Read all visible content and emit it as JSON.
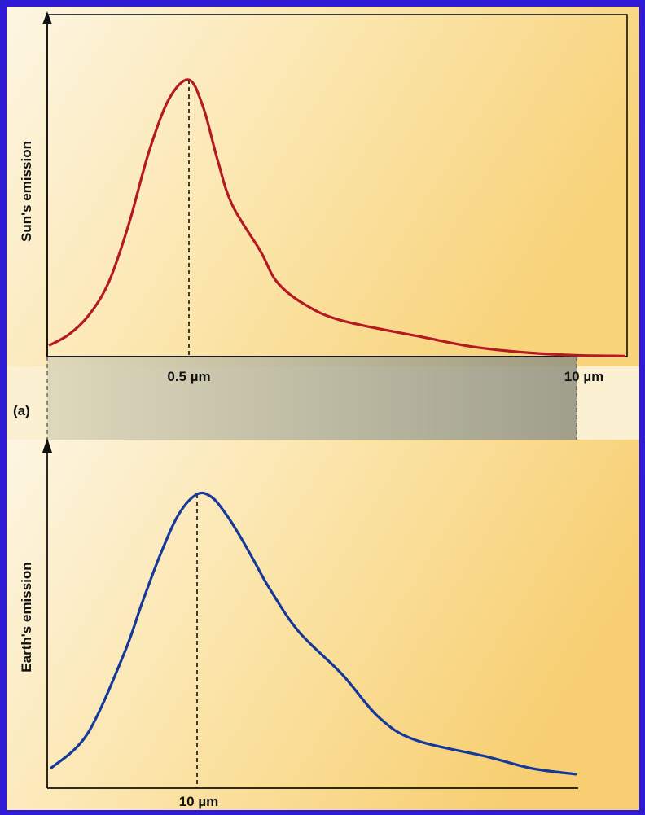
{
  "colors": {
    "page_background": "#2f1ad6",
    "panel_paper_light": "#fbf3de",
    "panel_paper_warm": "#f9d98a",
    "sun_curve": "#b41a22",
    "earth_curve": "#15399a",
    "connector_band": "#9c9c86"
  },
  "panel_label": "(a)",
  "chart_data": [
    {
      "type": "line",
      "title": "",
      "ylabel": "Sun's emission",
      "xlabel": "",
      "tick_labels": [
        "0.5 µm",
        "10 µm"
      ],
      "x_scale": "wavelength (µm), nonlinear axis",
      "peak_label": "0.5 µm",
      "grid": false,
      "legend": "none",
      "series": [
        {
          "x": [
            0.15,
            0.2,
            0.25,
            0.3,
            0.35,
            0.4,
            0.45,
            0.5,
            0.6,
            0.7,
            0.8,
            1.0,
            1.3,
            1.8,
            2.5,
            4,
            6,
            8,
            10,
            11
          ],
          "y": [
            0.04,
            0.08,
            0.15,
            0.27,
            0.48,
            0.74,
            0.93,
            1.0,
            0.9,
            0.71,
            0.55,
            0.38,
            0.27,
            0.19,
            0.13,
            0.07,
            0.035,
            0.015,
            0.005,
            0.002
          ]
        }
      ]
    },
    {
      "type": "line",
      "title": "",
      "ylabel": "Earth's emission",
      "xlabel": "",
      "tick_labels": [
        "10 µm"
      ],
      "x_scale": "wavelength (µm), nonlinear axis",
      "peak_label": "10 µm",
      "grid": false,
      "legend": "none",
      "series": [
        {
          "x": [
            2,
            4,
            6,
            7,
            8,
            9,
            10,
            11,
            12,
            13,
            14,
            15,
            17,
            20,
            25,
            30,
            40,
            50,
            60
          ],
          "y": [
            0.04,
            0.16,
            0.44,
            0.62,
            0.79,
            0.93,
            1.0,
            0.99,
            0.93,
            0.85,
            0.76,
            0.67,
            0.52,
            0.37,
            0.22,
            0.14,
            0.08,
            0.04,
            0.02
          ]
        }
      ]
    }
  ]
}
